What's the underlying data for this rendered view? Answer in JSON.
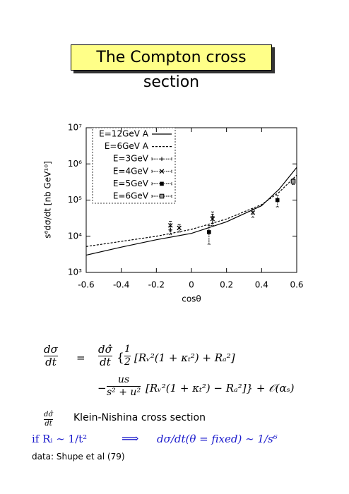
{
  "header": {
    "title": "The Compton cross section"
  },
  "chart_data": {
    "type": "line",
    "xlabel": "cosθ",
    "ylabel": "s⁶dσ/dt [nb GeV¹⁰]",
    "xlim": [
      -0.6,
      0.6
    ],
    "xticks": [
      -0.6,
      -0.4,
      -0.2,
      0,
      0.2,
      0.4,
      0.6
    ],
    "ylim": [
      1000,
      10000000
    ],
    "log_y": true,
    "yticks": [
      {
        "value": 1000,
        "label": "10³"
      },
      {
        "value": 10000,
        "label": "10⁴"
      },
      {
        "value": 100000,
        "label": "10⁵"
      },
      {
        "value": 1000000,
        "label": "10⁶"
      },
      {
        "value": 10000000,
        "label": "10⁷"
      }
    ],
    "legend": "upper-left",
    "series": [
      {
        "name": "E=12GeV A",
        "type": "line",
        "dash": false,
        "color": "#000000",
        "x": [
          -0.6,
          -0.4,
          -0.2,
          0,
          0.2,
          0.4,
          0.5,
          0.6
        ],
        "values": [
          3000,
          5000,
          8000,
          12000,
          25000,
          70000,
          200000,
          800000
        ]
      },
      {
        "name": "E=6GeV A",
        "type": "line",
        "dash": true,
        "color": "#000000",
        "x": [
          -0.6,
          -0.4,
          -0.2,
          0,
          0.2,
          0.4,
          0.5,
          0.6
        ],
        "values": [
          5200,
          7200,
          10000,
          15500,
          30000,
          75000,
          165000,
          490000
        ]
      },
      {
        "name": "E=3GeV",
        "type": "errorbar",
        "marker": "plus",
        "color": "#000000",
        "x": [
          -0.12,
          0.12
        ],
        "values": [
          15000,
          35000
        ],
        "errors": [
          4000,
          12000
        ]
      },
      {
        "name": "E=4GeV",
        "type": "errorbar",
        "marker": "cross",
        "color": "#000000",
        "x": [
          -0.12,
          -0.07,
          0.12,
          0.35
        ],
        "values": [
          20000,
          17000,
          30000,
          45000
        ],
        "errors": [
          6000,
          4000,
          10000,
          12000
        ]
      },
      {
        "name": "E=5GeV",
        "type": "errorbar",
        "marker": "filled-square",
        "color": "#000000",
        "x": [
          0.1,
          0.49
        ],
        "values": [
          13000,
          100000
        ],
        "errors": [
          7000,
          35000
        ]
      },
      {
        "name": "E=6GeV",
        "type": "errorbar",
        "marker": "open-square",
        "color": "#000000",
        "x": [
          0.58
        ],
        "values": [
          330000
        ],
        "errors": [
          60000
        ]
      }
    ]
  },
  "formula": {
    "lhs_num": "dσ",
    "lhs_den": "dt",
    "eq": "=",
    "r_num": "dσ̂",
    "r_den": "dt",
    "brace": "{",
    "half_num": "1",
    "half_den": "2",
    "tail1": "[Rᵥ²(1 + κₜ²) + Rₐ²]",
    "minus": "−",
    "us_num": "us",
    "us_den": "s² + u²",
    "tail2": "[Rᵥ²(1 + κₜ²) − Rₐ²]} + 𝒪(αₛ)"
  },
  "kn": {
    "num": "dσ̂",
    "den": "dt",
    "text": "Klein-Nishina cross section"
  },
  "scaling": {
    "cond": "if Rᵢ ∼ 1/t²",
    "arrow": "⟹",
    "result": "dσ/dt(θ = fixed) ∼ 1/s⁶"
  },
  "source": "data: Shupe et al (79)"
}
